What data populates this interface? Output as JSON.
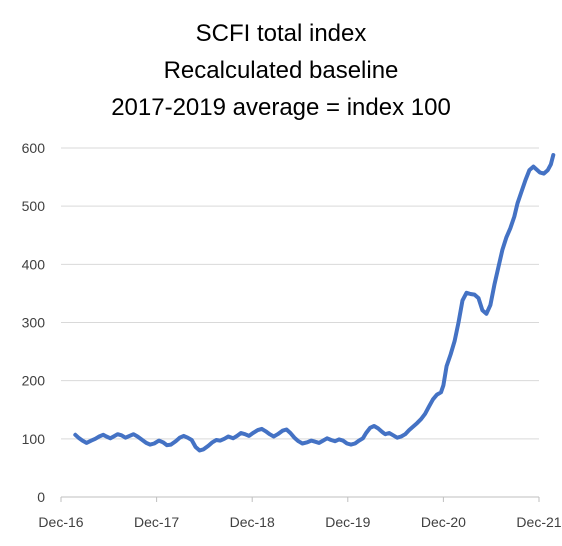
{
  "chart_data": {
    "type": "line",
    "title_lines": [
      "SCFI total index",
      "Recalculated baseline",
      "2017-2019 average = index 100"
    ],
    "xlabel": "",
    "ylabel": "",
    "x_ticks": [
      "Dec-16",
      "Dec-17",
      "Dec-18",
      "Dec-19",
      "Dec-20",
      "Dec-21"
    ],
    "y_ticks": [
      "0",
      "100",
      "200",
      "300",
      "400",
      "500",
      "600"
    ],
    "ylim": [
      0,
      600
    ],
    "xlim_months": [
      0,
      60
    ],
    "grid": "horizontal",
    "legend": "none",
    "line_color": "#4472c4",
    "series": [
      {
        "points": [
          [
            1.8,
            107
          ],
          [
            2.2,
            102
          ],
          [
            2.7,
            97
          ],
          [
            3.2,
            93
          ],
          [
            3.8,
            97
          ],
          [
            4.3,
            100
          ],
          [
            4.8,
            104
          ],
          [
            5.3,
            107
          ],
          [
            5.7,
            104
          ],
          [
            6.2,
            101
          ],
          [
            6.6,
            104
          ],
          [
            7.1,
            108
          ],
          [
            7.6,
            106
          ],
          [
            8.1,
            102
          ],
          [
            8.6,
            105
          ],
          [
            9.1,
            108
          ],
          [
            9.6,
            104
          ],
          [
            10.2,
            98
          ],
          [
            10.7,
            93
          ],
          [
            11.2,
            90
          ],
          [
            11.7,
            92
          ],
          [
            12.3,
            97
          ],
          [
            12.8,
            94
          ],
          [
            13.3,
            89
          ],
          [
            13.8,
            90
          ],
          [
            14.4,
            96
          ],
          [
            14.9,
            102
          ],
          [
            15.4,
            105
          ],
          [
            15.9,
            102
          ],
          [
            16.4,
            98
          ],
          [
            16.9,
            86
          ],
          [
            17.4,
            80
          ],
          [
            17.9,
            82
          ],
          [
            18.5,
            88
          ],
          [
            19.0,
            94
          ],
          [
            19.5,
            98
          ],
          [
            20.0,
            97
          ],
          [
            20.5,
            100
          ],
          [
            21.0,
            104
          ],
          [
            21.6,
            101
          ],
          [
            22.1,
            105
          ],
          [
            22.6,
            110
          ],
          [
            23.1,
            108
          ],
          [
            23.6,
            105
          ],
          [
            24.1,
            110
          ],
          [
            24.7,
            115
          ],
          [
            25.2,
            117
          ],
          [
            25.7,
            113
          ],
          [
            26.2,
            108
          ],
          [
            26.7,
            104
          ],
          [
            27.2,
            108
          ],
          [
            27.8,
            114
          ],
          [
            28.3,
            116
          ],
          [
            28.8,
            110
          ],
          [
            29.3,
            102
          ],
          [
            29.8,
            96
          ],
          [
            30.3,
            92
          ],
          [
            30.9,
            94
          ],
          [
            31.4,
            97
          ],
          [
            31.9,
            95
          ],
          [
            32.4,
            93
          ],
          [
            32.9,
            97
          ],
          [
            33.4,
            101
          ],
          [
            33.9,
            98
          ],
          [
            34.4,
            96
          ],
          [
            34.9,
            99
          ],
          [
            35.4,
            97
          ],
          [
            35.9,
            92
          ],
          [
            36.4,
            90
          ],
          [
            36.9,
            92
          ],
          [
            37.4,
            97
          ],
          [
            37.9,
            101
          ],
          [
            38.3,
            110
          ],
          [
            38.8,
            119
          ],
          [
            39.3,
            122
          ],
          [
            39.8,
            118
          ],
          [
            40.3,
            112
          ],
          [
            40.7,
            108
          ],
          [
            41.2,
            110
          ],
          [
            41.7,
            106
          ],
          [
            42.2,
            102
          ],
          [
            42.7,
            104
          ],
          [
            43.2,
            108
          ],
          [
            43.7,
            115
          ],
          [
            44.2,
            121
          ],
          [
            44.7,
            127
          ],
          [
            45.2,
            134
          ],
          [
            45.7,
            143
          ],
          [
            46.2,
            156
          ],
          [
            46.7,
            168
          ],
          [
            47.2,
            176
          ],
          [
            47.7,
            180
          ],
          [
            48.0,
            192
          ],
          [
            48.4,
            225
          ],
          [
            48.9,
            245
          ],
          [
            49.4,
            268
          ],
          [
            49.9,
            300
          ],
          [
            50.4,
            338
          ],
          [
            50.9,
            351
          ],
          [
            51.4,
            349
          ],
          [
            51.9,
            348
          ],
          [
            52.4,
            342
          ],
          [
            52.9,
            321
          ],
          [
            53.4,
            315
          ],
          [
            53.9,
            330
          ],
          [
            54.4,
            365
          ],
          [
            54.9,
            395
          ],
          [
            55.4,
            425
          ],
          [
            55.9,
            446
          ],
          [
            56.4,
            462
          ],
          [
            56.9,
            482
          ],
          [
            57.3,
            505
          ],
          [
            57.8,
            525
          ],
          [
            58.3,
            545
          ],
          [
            58.8,
            562
          ],
          [
            59.3,
            568
          ],
          [
            59.7,
            563
          ],
          [
            60.1,
            558
          ],
          [
            60.6,
            556
          ],
          [
            61.1,
            562
          ],
          [
            61.5,
            572
          ],
          [
            61.8,
            588
          ]
        ]
      }
    ]
  }
}
